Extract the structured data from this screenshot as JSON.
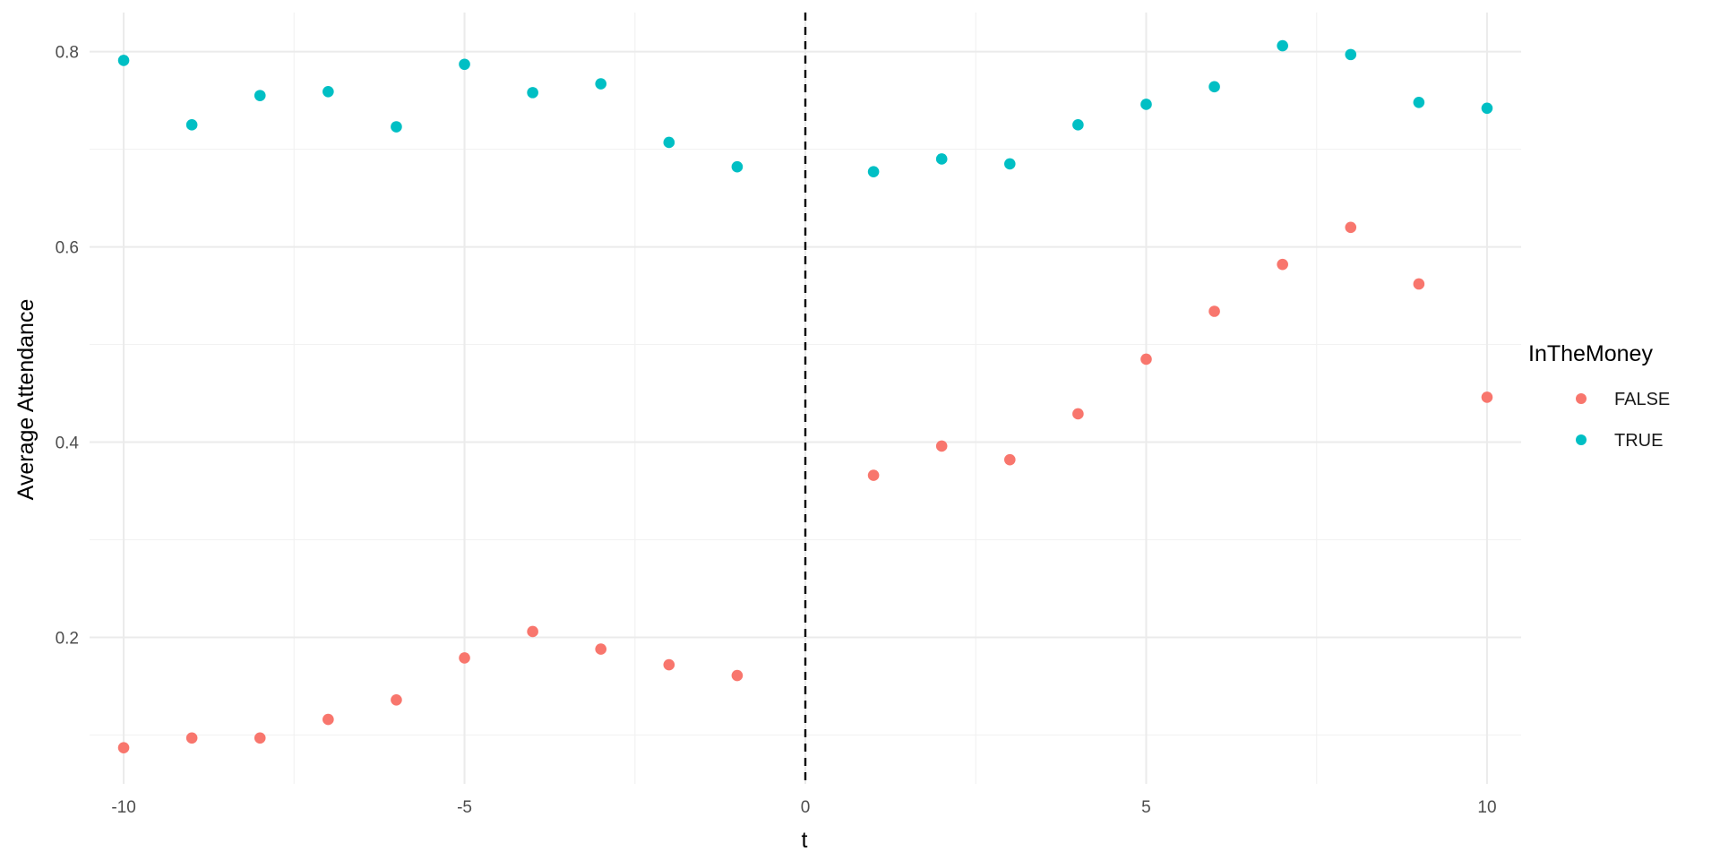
{
  "chart_data": {
    "type": "scatter",
    "title": "",
    "xlabel": "t",
    "ylabel": "Average Attendance",
    "xlim": [
      -10.5,
      10.5
    ],
    "ylim": [
      0.05,
      0.84
    ],
    "x_ticks": [
      -10,
      -5,
      0,
      5,
      10
    ],
    "x_tick_labels": [
      "-10",
      "-5",
      "0",
      "5",
      "10"
    ],
    "y_ticks": [
      0.2,
      0.4,
      0.6,
      0.8
    ],
    "y_tick_labels": [
      "0.2",
      "0.4",
      "0.6",
      "0.8"
    ],
    "grid": true,
    "vline": {
      "x": 0,
      "style": "dashed",
      "color": "#000000"
    },
    "legend": {
      "title": "InTheMoney",
      "position": "right"
    },
    "series": [
      {
        "name": "FALSE",
        "color": "#F8766D",
        "x": [
          -10,
          -9,
          -8,
          -7,
          -6,
          -5,
          -4,
          -3,
          -2,
          -1,
          1,
          2,
          3,
          4,
          5,
          6,
          7,
          8,
          9,
          10
        ],
        "y": [
          0.087,
          0.097,
          0.097,
          0.116,
          0.136,
          0.179,
          0.206,
          0.188,
          0.172,
          0.161,
          0.366,
          0.396,
          0.382,
          0.429,
          0.485,
          0.534,
          0.582,
          0.62,
          0.562,
          0.446
        ]
      },
      {
        "name": "TRUE",
        "color": "#00BFC4",
        "x": [
          -10,
          -9,
          -8,
          -7,
          -6,
          -5,
          -4,
          -3,
          -2,
          -1,
          1,
          2,
          3,
          4,
          5,
          6,
          7,
          8,
          9,
          10
        ],
        "y": [
          0.791,
          0.725,
          0.755,
          0.759,
          0.723,
          0.787,
          0.758,
          0.767,
          0.707,
          0.682,
          0.677,
          0.69,
          0.685,
          0.725,
          0.746,
          0.764,
          0.806,
          0.797,
          0.748,
          0.742
        ]
      }
    ]
  }
}
